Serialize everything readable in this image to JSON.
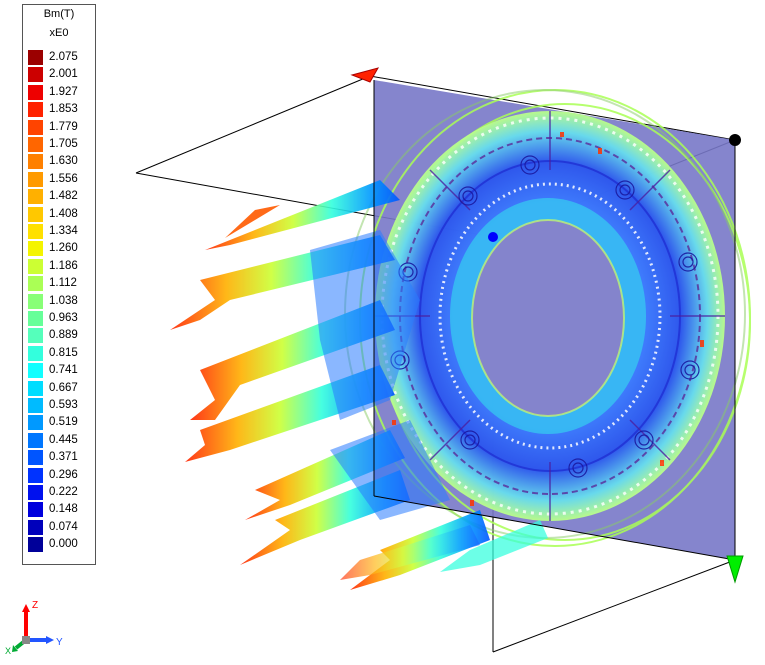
{
  "legend": {
    "quantity": "Bm(T)",
    "multiplier": "xE0",
    "entries": [
      {
        "value": "2.075",
        "color": "#9b0000"
      },
      {
        "value": "2.001",
        "color": "#cc0000"
      },
      {
        "value": "1.927",
        "color": "#ee0000"
      },
      {
        "value": "1.853",
        "color": "#ff2200"
      },
      {
        "value": "1.779",
        "color": "#ff4400"
      },
      {
        "value": "1.705",
        "color": "#ff6600"
      },
      {
        "value": "1.630",
        "color": "#ff8000"
      },
      {
        "value": "1.556",
        "color": "#ff9a00"
      },
      {
        "value": "1.482",
        "color": "#ffb000"
      },
      {
        "value": "1.408",
        "color": "#ffc800"
      },
      {
        "value": "1.334",
        "color": "#ffe000"
      },
      {
        "value": "1.260",
        "color": "#f4f400"
      },
      {
        "value": "1.186",
        "color": "#ccff33"
      },
      {
        "value": "1.112",
        "color": "#aaff55"
      },
      {
        "value": "1.038",
        "color": "#88ff77"
      },
      {
        "value": "0.963",
        "color": "#66ff99"
      },
      {
        "value": "0.889",
        "color": "#55ffbb"
      },
      {
        "value": "0.815",
        "color": "#33ffdd"
      },
      {
        "value": "0.741",
        "color": "#11ffff"
      },
      {
        "value": "0.667",
        "color": "#00ddff"
      },
      {
        "value": "0.593",
        "color": "#00bbff"
      },
      {
        "value": "0.519",
        "color": "#0099ff"
      },
      {
        "value": "0.445",
        "color": "#0077ff"
      },
      {
        "value": "0.371",
        "color": "#0055ff"
      },
      {
        "value": "0.296",
        "color": "#0033ff"
      },
      {
        "value": "0.222",
        "color": "#0011ee"
      },
      {
        "value": "0.148",
        "color": "#0000dd"
      },
      {
        "value": "0.074",
        "color": "#0000bb"
      },
      {
        "value": "0.000",
        "color": "#000099"
      }
    ]
  },
  "axis_triad": {
    "z": "Z",
    "y": "Y",
    "x": "X"
  },
  "colors": {
    "cut_plane": "#7878c8",
    "wire_frame": "#000000",
    "marker_red": "#ff2200",
    "marker_green": "#00ee00",
    "marker_blue": "#0000ff"
  }
}
